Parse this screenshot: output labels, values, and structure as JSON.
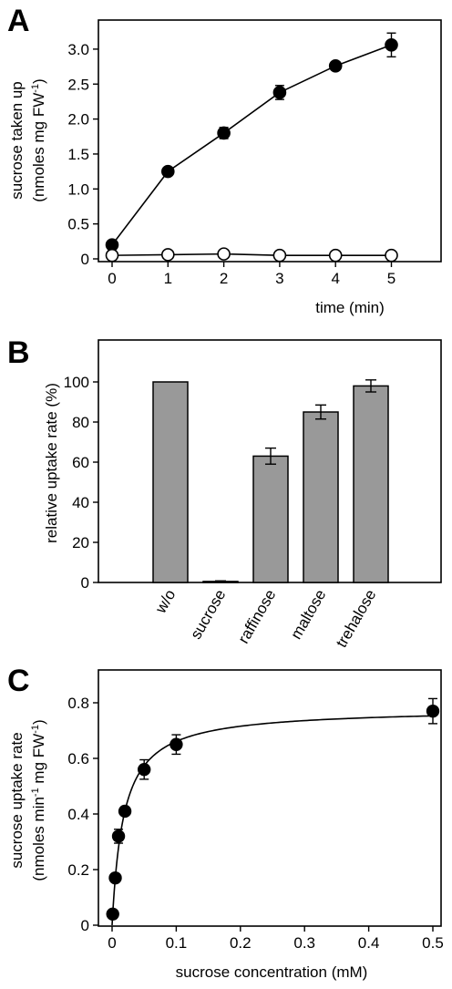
{
  "chart_data": [
    {
      "panel": "A",
      "type": "line",
      "xlabel": "time (min)",
      "ylabel_line1": "sucrose taken up",
      "ylabel_line2_pre": "(nmoles mg FW",
      "ylabel_line2_sup": "-1",
      "ylabel_line2_post": ")",
      "xlim": [
        0,
        6
      ],
      "ylim": [
        0,
        3.4
      ],
      "xticks": [
        "0",
        "1",
        "2",
        "3",
        "4",
        "5"
      ],
      "yticks": [
        "0",
        "0.5",
        "1.0",
        "1.5",
        "2.0",
        "2.5",
        "3.0"
      ],
      "xtick_values": [
        0,
        1,
        2,
        3,
        4,
        5
      ],
      "ytick_values": [
        0,
        0.5,
        1.0,
        1.5,
        2.0,
        2.5,
        3.0
      ],
      "series": [
        {
          "marker": "filled-circle",
          "x": [
            0,
            1,
            2,
            3,
            4,
            5
          ],
          "y": [
            0.2,
            1.25,
            1.8,
            2.38,
            2.76,
            3.06
          ],
          "err": [
            0.03,
            0.04,
            0.08,
            0.1,
            0.05,
            0.17
          ]
        },
        {
          "marker": "open-circle",
          "x": [
            0,
            1,
            2,
            3,
            4,
            5
          ],
          "y": [
            0.05,
            0.06,
            0.07,
            0.05,
            0.05,
            0.05
          ],
          "err": [
            0,
            0,
            0,
            0,
            0,
            0
          ]
        }
      ],
      "grid": false
    },
    {
      "panel": "B",
      "type": "bar",
      "ylabel": "relative uptake rate (%)",
      "ylim": [
        0,
        120
      ],
      "yticks": [
        "0",
        "20",
        "40",
        "60",
        "80",
        "100"
      ],
      "ytick_values": [
        0,
        20,
        40,
        60,
        80,
        100
      ],
      "categories": [
        "w/o",
        "sucrose",
        "raffinose",
        "maltose",
        "trehalose"
      ],
      "values": [
        100,
        0.5,
        63,
        85,
        98
      ],
      "err": [
        0,
        0.3,
        4,
        3.5,
        3
      ],
      "bar_color": "#999999",
      "grid": false
    },
    {
      "panel": "C",
      "type": "scatter",
      "xlabel": "sucrose concentration (mM)",
      "ylabel_line1": "sucrose uptake rate",
      "ylabel_line2_a": "(nmoles min",
      "ylabel_line2_sup1": "-1",
      "ylabel_line2_b": " mg FW",
      "ylabel_line2_sup2": "-1",
      "ylabel_line2_c": ")",
      "xlim": [
        0,
        0.52
      ],
      "ylim": [
        0,
        0.9
      ],
      "xticks": [
        "0",
        "0.1",
        "0.2",
        "0.3",
        "0.4",
        "0.5"
      ],
      "yticks": [
        "0",
        "0.2",
        "0.4",
        "0.6",
        "0.8"
      ],
      "xtick_values": [
        0,
        0.1,
        0.2,
        0.3,
        0.4,
        0.5
      ],
      "ytick_values": [
        0,
        0.2,
        0.4,
        0.6,
        0.8
      ],
      "points": {
        "x": [
          0.001,
          0.005,
          0.01,
          0.02,
          0.05,
          0.1,
          0.5
        ],
        "y": [
          0.04,
          0.17,
          0.32,
          0.41,
          0.56,
          0.65,
          0.77
        ],
        "err": [
          0.0,
          0.01,
          0.025,
          0.015,
          0.035,
          0.035,
          0.045
        ]
      },
      "fit": {
        "model": "michaelis-menten",
        "vmax": 0.78,
        "km": 0.018,
        "x_range": [
          0,
          0.5
        ]
      },
      "grid": false
    }
  ],
  "panels": {
    "a": "A",
    "b": "B",
    "c": "C"
  }
}
